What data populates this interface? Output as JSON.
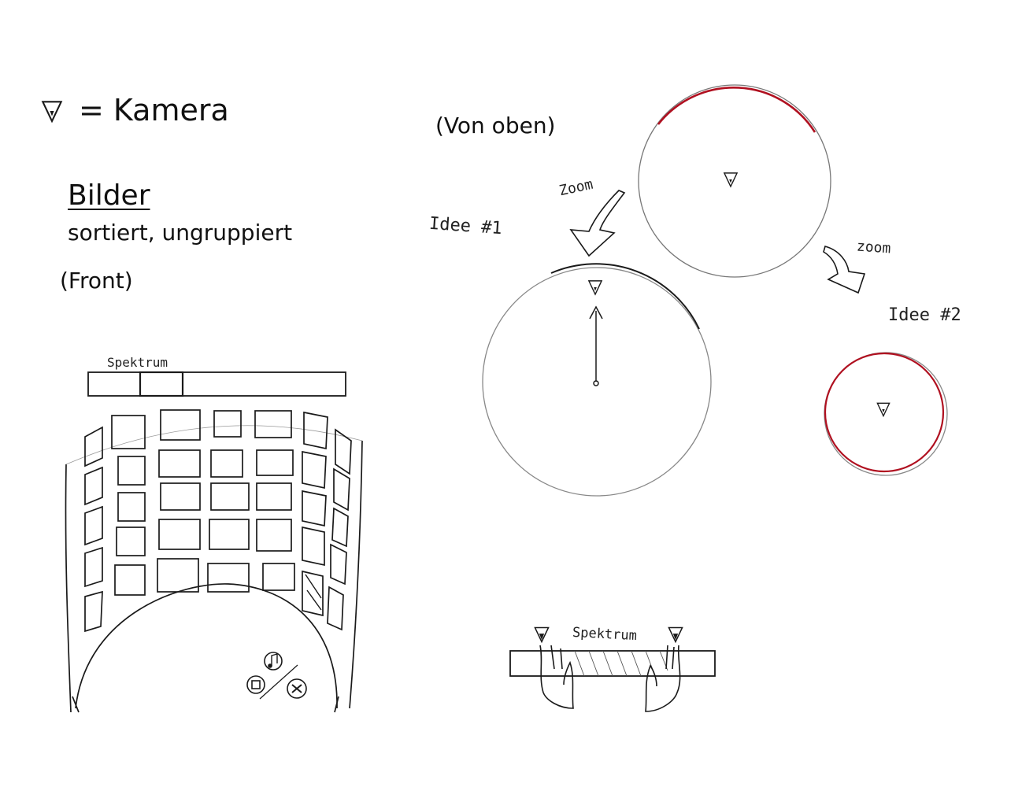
{
  "legend": {
    "icon": "camera-icon",
    "label": "= Kamera"
  },
  "heading": {
    "title": "Bilder",
    "subtitle": "sortiert, ungruppiert"
  },
  "views": {
    "front": "(Front)",
    "top": "(Von oben)"
  },
  "ideas": {
    "idea1": "Idee #1",
    "idea2": "Idee #2"
  },
  "zoom_labels": {
    "zoom1": "Zoom",
    "zoom2": "zoom"
  },
  "spectrum": {
    "front_label": "Spektrum",
    "bottom_label": "Spektrum"
  },
  "media_icons": [
    "music-icon",
    "image-icon",
    "video-icon"
  ],
  "colors": {
    "ink": "#1a1a1a",
    "highlight": "#b01020",
    "paper": "#ffffff"
  }
}
